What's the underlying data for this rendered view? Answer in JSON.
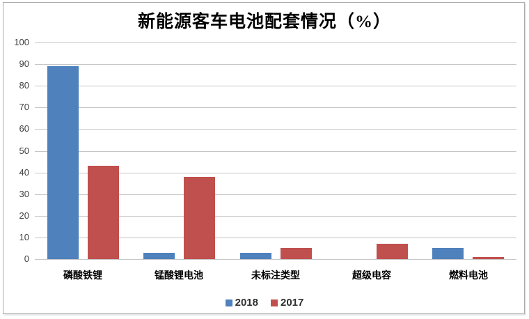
{
  "chart_data": {
    "type": "bar",
    "title": "新能源客车电池配套情况（%）",
    "categories": [
      "磷酸铁锂",
      "锰酸锂电池",
      "未标注类型",
      "超级电容",
      "燃料电池"
    ],
    "series": [
      {
        "name": "2018",
        "color": "#4f81bd",
        "values": [
          89,
          3,
          3,
          0,
          5
        ]
      },
      {
        "name": "2017",
        "color": "#c0504d",
        "values": [
          43,
          38,
          5,
          7,
          1
        ]
      }
    ],
    "xlabel": "",
    "ylabel": "",
    "ylim": [
      0,
      100
    ],
    "ytick_step": 10,
    "grid": true,
    "legend_position": "bottom",
    "colors": {
      "series_2018": "#4f81bd",
      "series_2017": "#c0504d",
      "gridline": "#c6c6c6",
      "frame_border": "#ababab",
      "background": "#ffffff"
    }
  }
}
